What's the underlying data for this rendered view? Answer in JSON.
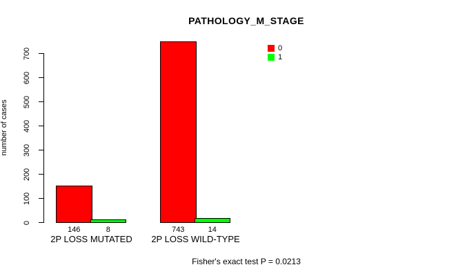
{
  "chart_data": {
    "type": "bar",
    "title": "PATHOLOGY_M_STAGE",
    "ylabel": "number of cases",
    "xlabel": "",
    "ylim": [
      0,
      700
    ],
    "yticks": [
      0,
      100,
      200,
      300,
      400,
      500,
      600,
      700
    ],
    "categories": [
      "2P LOSS MUTATED",
      "2P LOSS WILD-TYPE"
    ],
    "series": [
      {
        "name": "0",
        "color": "#ff0000",
        "values": [
          146,
          743
        ]
      },
      {
        "name": "1",
        "color": "#00ff00",
        "values": [
          8,
          14
        ]
      }
    ],
    "bar_value_labels": [
      [
        146,
        8
      ],
      [
        743,
        14
      ]
    ],
    "legend_position": "top-right",
    "grid": false,
    "background": "#ffffff",
    "axis_color": "#000000",
    "text_color": "#000000",
    "footer": "Fisher's exact test P = 0.0213"
  }
}
